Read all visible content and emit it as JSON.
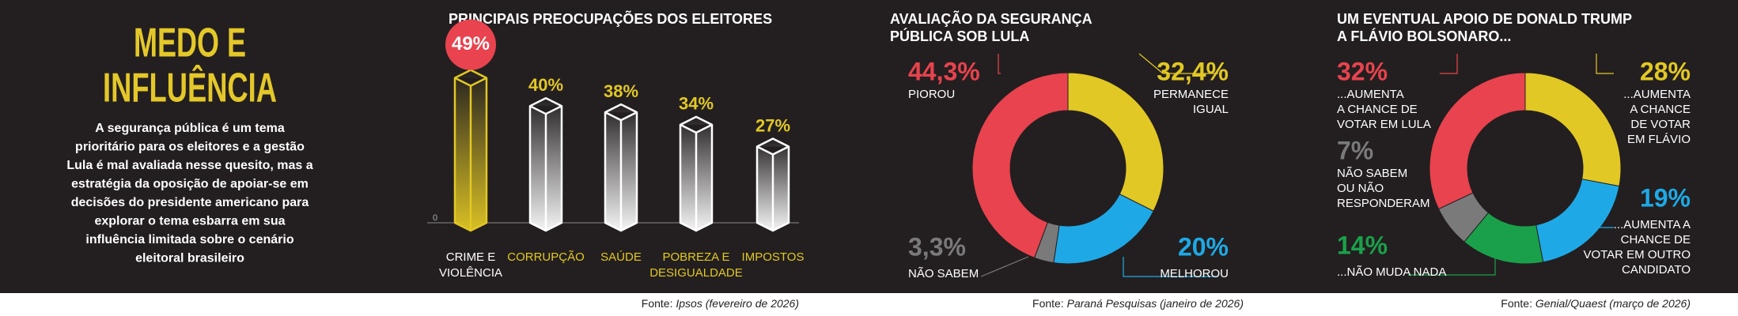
{
  "header": {
    "title": [
      "MEDO E",
      "INFLUÊNCIA"
    ],
    "text": [
      "A segurança pública é um tema",
      "prioritário para os eleitores e a gestão",
      "Lula é mal avaliada nesse quesito, mas a",
      "estratégia da oposição de apoiar-se em",
      "decisões do presidente americano para",
      "explorar o tema esbarra em sua",
      "influência limitada sobre o cenário",
      "eleitoral brasileiro"
    ]
  },
  "chart_data": [
    {
      "type": "bar",
      "title": "PRINCIPAIS PREOCUPAÇÕES DOS ELEITORES",
      "categories": [
        "CRIME E\nVIOLÊNCIA",
        "CORRUPÇÃO",
        "SAÚDE",
        "POBREZA E\nDESIGUALDADE",
        "IMPOSTOS"
      ],
      "values": [
        49,
        40,
        38,
        34,
        27
      ],
      "value_labels": [
        "49%",
        "40%",
        "38%",
        "34%",
        "27%"
      ],
      "colors": [
        "#e2c824",
        "#ffffff",
        "#ffffff",
        "#ffffff",
        "#ffffff"
      ],
      "category_colors": [
        "#ffffff",
        "#e2c824",
        "#e2c824",
        "#e2c824",
        "#e2c824"
      ],
      "value_label_colors": [
        "#ffffff",
        "#e2c824",
        "#e2c824",
        "#e2c824",
        "#e2c824"
      ],
      "value_label_backgrounds": [
        "#e8434e",
        null,
        null,
        null,
        null
      ],
      "ylim": [
        0,
        55
      ],
      "yticks": [
        0
      ],
      "source_prefix": "Fonte:",
      "source": "Ipsos (fevereiro de 2026)"
    },
    {
      "type": "pie",
      "title": "AVALIAÇÃO DA SEGURANÇA\nPÚBLICA SOB LULA",
      "categories": [
        "PERMANECE\nIGUAL",
        "MELHOROU",
        "NÃO SABEM",
        "PIOROU"
      ],
      "values": [
        32.4,
        20,
        3.3,
        44.3
      ],
      "value_labels": [
        "32,4%",
        "20%",
        "3,3%",
        "44,3%"
      ],
      "colors": [
        "#e2c824",
        "#1ea9e6",
        "#7a7a7b",
        "#e8434e"
      ],
      "source_prefix": "Fonte:",
      "source": "Paraná Pesquisas (janeiro de 2026)"
    },
    {
      "type": "pie",
      "title": "UM EVENTUAL APOIO DE DONALD TRUMP\nA FLÁVIO BOLSONARO...",
      "categories": [
        "...AUMENTA\nA CHANCE\nDE VOTAR\nEM FLÁVIO",
        "...AUMENTA A\nCHANCE DE\nVOTAR EM OUTRO\nCANDIDATO",
        "...NÃO MUDA NADA",
        "NÃO SABEM\nOU NÃO\nRESPONDERAM",
        "...AUMENTA\nA CHANCE DE\nVOTAR EM LULA"
      ],
      "values": [
        28,
        19,
        14,
        7,
        32
      ],
      "value_labels": [
        "28%",
        "19%",
        "14%",
        "7%",
        "32%"
      ],
      "colors": [
        "#e2c824",
        "#1ea9e6",
        "#1aa04a",
        "#7a7a7b",
        "#e8434e"
      ],
      "source_prefix": "Fonte:",
      "source": "Genial/Quaest (março de 2026)"
    }
  ]
}
